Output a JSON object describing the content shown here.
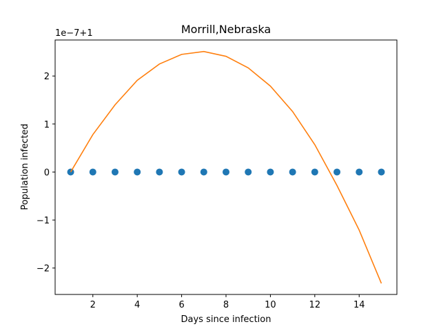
{
  "chart_data": {
    "type": "scatter",
    "title": "Morrill,Nebraska",
    "xlabel": "Days since infection",
    "ylabel": "Population infected",
    "offset_label": "1e−7+1",
    "xlim": [
      0.3,
      15.7
    ],
    "ylim": [
      -2.55,
      2.75
    ],
    "x_ticks": [
      2,
      4,
      6,
      8,
      10,
      12,
      14
    ],
    "y_ticks": [
      -2,
      -1,
      0,
      1,
      2
    ],
    "y_tick_labels": [
      "−2",
      "−1",
      "0",
      "1",
      "2"
    ],
    "grid": false,
    "series": [
      {
        "mode": "markers",
        "color": "#1f77b4",
        "x": [
          1,
          2,
          3,
          4,
          5,
          6,
          7,
          8,
          9,
          10,
          11,
          12,
          13,
          14,
          15
        ],
        "y": [
          0,
          0,
          0,
          0,
          0,
          0,
          0,
          0,
          0,
          0,
          0,
          0,
          0,
          0,
          0
        ]
      },
      {
        "mode": "line",
        "color": "#ff7f0e",
        "x": [
          1,
          2,
          3,
          4,
          5,
          6,
          7,
          8,
          9,
          10,
          11,
          12,
          13,
          14,
          15
        ],
        "y": [
          0.0,
          0.78,
          1.4,
          1.91,
          2.25,
          2.45,
          2.51,
          2.41,
          2.17,
          1.79,
          1.26,
          0.57,
          -0.28,
          -1.21,
          -2.32
        ]
      }
    ]
  }
}
